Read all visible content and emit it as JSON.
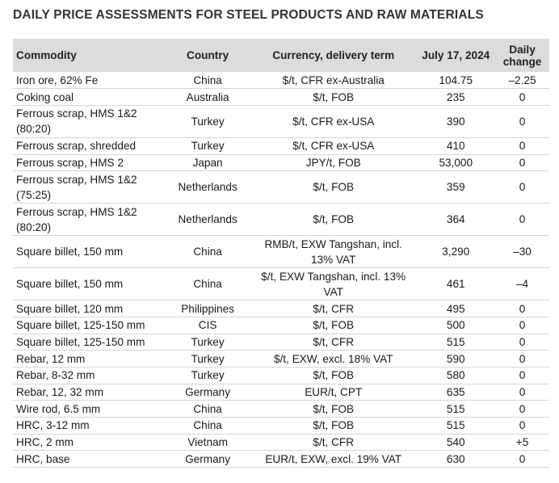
{
  "title": "DAILY PRICE ASSESSMENTS FOR STEEL PRODUCTS AND RAW MATERIALS",
  "headers": {
    "commodity": "Commodity",
    "country": "Country",
    "currency": "Currency, delivery term",
    "date": "July 17, 2024",
    "change": "Daily change"
  },
  "rows": [
    {
      "commodity": "Iron ore, 62% Fe",
      "country": "China",
      "currency": "$/t, CFR ex-Australia",
      "price": "104.75",
      "change": "–2.25"
    },
    {
      "commodity": "Coking coal",
      "country": "Australia",
      "currency": "$/t, FOB",
      "price": "235",
      "change": "0"
    },
    {
      "commodity": "Ferrous scrap, HMS 1&2 (80:20)",
      "country": "Turkey",
      "currency": "$/t, CFR ex-USA",
      "price": "390",
      "change": "0"
    },
    {
      "commodity": "Ferrous scrap, shredded",
      "country": "Turkey",
      "currency": "$/t, CFR ex-USA",
      "price": "410",
      "change": "0"
    },
    {
      "commodity": "Ferrous scrap, HMS 2",
      "country": "Japan",
      "currency": "JPY/t, FOB",
      "price": "53,000",
      "change": "0"
    },
    {
      "commodity": "Ferrous scrap, HMS 1&2 (75:25)",
      "country": "Netherlands",
      "currency": "$/t, FOB",
      "price": "359",
      "change": "0"
    },
    {
      "commodity": "Ferrous scrap, HMS 1&2 (80:20)",
      "country": "Netherlands",
      "currency": "$/t, FOB",
      "price": "364",
      "change": "0"
    },
    {
      "commodity": "Square billet, 150 mm",
      "country": "China",
      "currency": "RMB/t, EXW Tangshan, incl. 13% VAT",
      "price": "3,290",
      "change": "–30"
    },
    {
      "commodity": "Square billet, 150 mm",
      "country": "China",
      "currency": "$/t, EXW Tangshan, incl. 13% VAT",
      "price": "461",
      "change": "–4"
    },
    {
      "commodity": "Square billet, 120 mm",
      "country": "Philippines",
      "currency": "$/t, CFR",
      "price": "495",
      "change": "0"
    },
    {
      "commodity": "Square billet, 125-150 mm",
      "country": "CIS",
      "currency": "$/t, FOB",
      "price": "500",
      "change": "0"
    },
    {
      "commodity": "Square billet, 125-150 mm",
      "country": "Turkey",
      "currency": "$/t, CFR",
      "price": "515",
      "change": "0"
    },
    {
      "commodity": "Rebar, 12 mm",
      "country": "Turkey",
      "currency": "$/t, EXW, excl. 18% VAT",
      "price": "590",
      "change": "0"
    },
    {
      "commodity": "Rebar, 8-32 mm",
      "country": "Turkey",
      "currency": "$/t, FOB",
      "price": "580",
      "change": "0"
    },
    {
      "commodity": "Rebar, 12, 32 mm",
      "country": "Germany",
      "currency": "EUR/t, CPT",
      "price": "635",
      "change": "0"
    },
    {
      "commodity": "Wire rod, 6.5 mm",
      "country": "China",
      "currency": "$/t, FOB",
      "price": "515",
      "change": "0"
    },
    {
      "commodity": "HRC, 3-12 mm",
      "country": "China",
      "currency": "$/t, FOB",
      "price": "515",
      "change": "0"
    },
    {
      "commodity": "HRC, 2 mm",
      "country": "Vietnam",
      "currency": "$/t, CFR",
      "price": "540",
      "change": "+5"
    },
    {
      "commodity": "HRC, base",
      "country": "Germany",
      "currency": "EUR/t, EXW, excl. 19% VAT",
      "price": "630",
      "change": "0"
    }
  ]
}
